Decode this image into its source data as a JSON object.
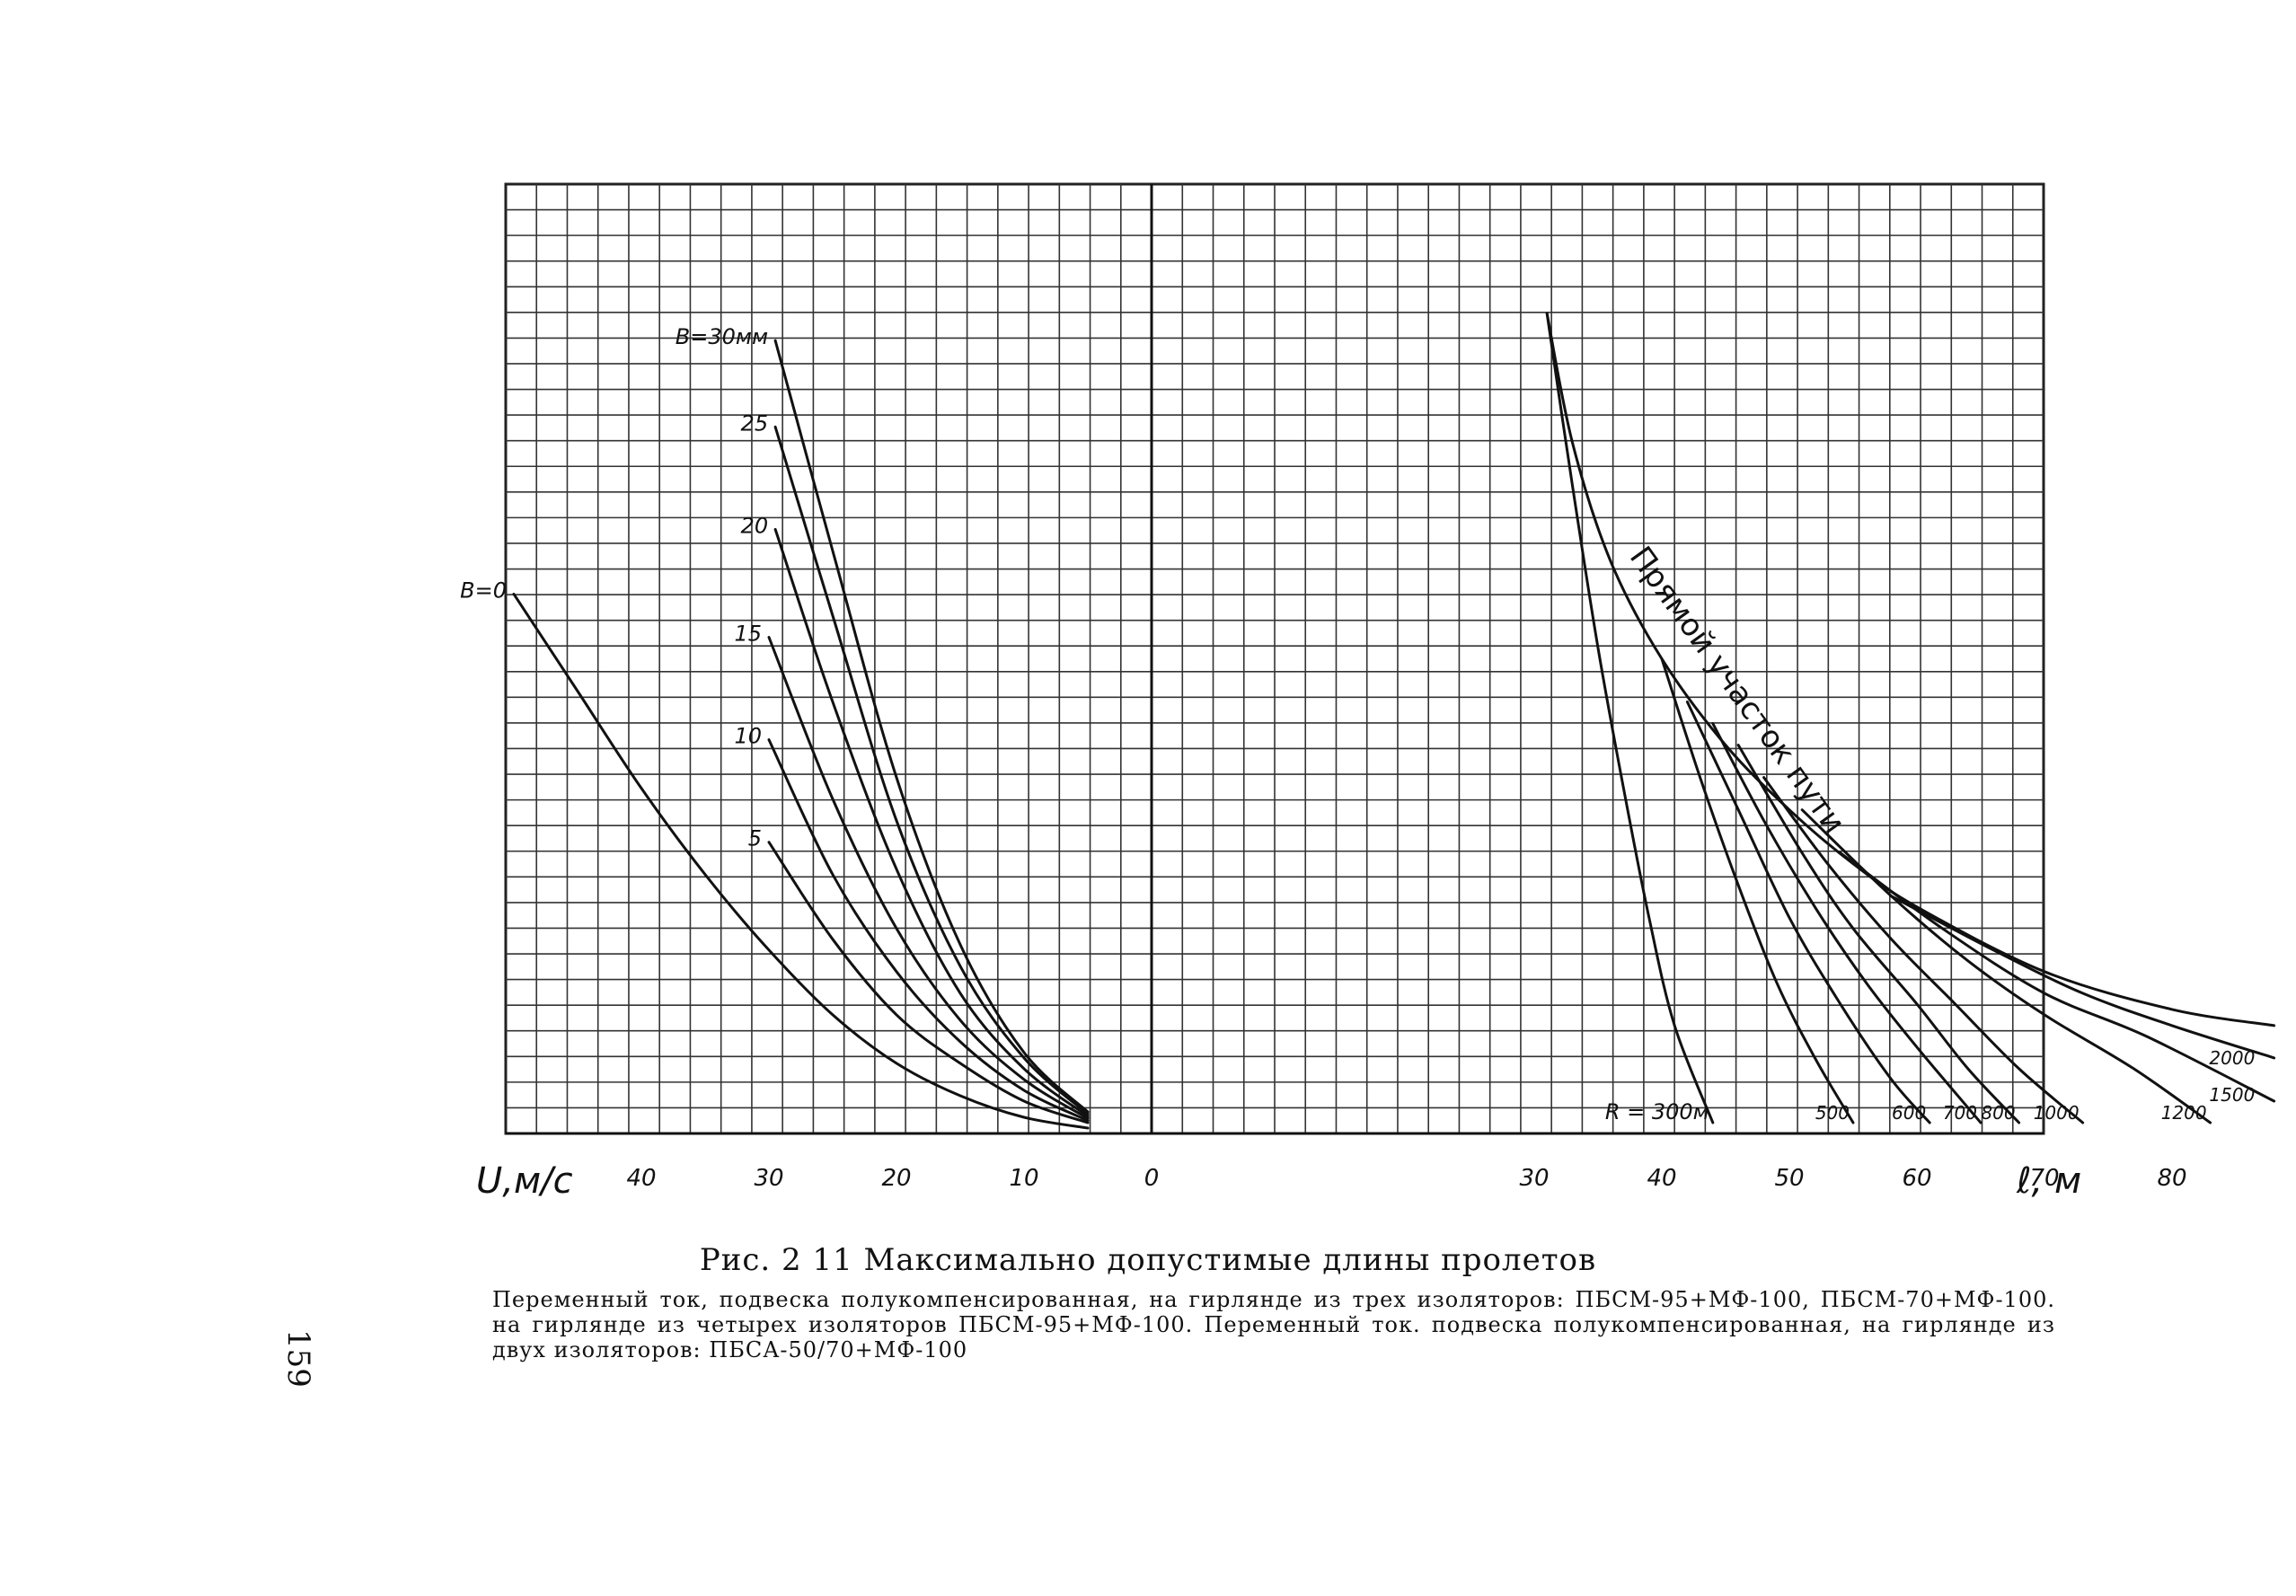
{
  "page_number": "159",
  "figure": {
    "title": "Рис. 2 11 Максимально допустимые длины пролетов",
    "subtitle": "Переменный ток, подвеска полукомпенсированная, на гирлянде из трех изоляторов: ПБСМ-95+МФ-100, ПБСМ-70+МФ-100. на гирлянде из четырех изоляторов ПБСМ-95+МФ-100. Переменный ток. подвеска полукомпенсированная, на гирлянде из двух изоляторов: ПБСА-50/70+МФ-100"
  },
  "chart_data": {
    "type": "line",
    "grid": true,
    "axis": {
      "left_label": "U,м/с",
      "right_label": "ℓ, м",
      "left_ticks": [
        "40",
        "30",
        "20",
        "10"
      ],
      "center_tick": "0",
      "right_ticks": [
        "30",
        "40",
        "50",
        "60",
        "70",
        "80"
      ]
    },
    "left_panel": {
      "x_label": "U, м/с",
      "y_label": "ℓ, м",
      "xlim": [
        0,
        50
      ],
      "ylim": [
        0,
        88
      ],
      "x_reversed": true,
      "series": [
        {
          "name": "B=0",
          "label": "B=0",
          "points": [
            [
              50,
              50
            ],
            [
              45,
              41
            ],
            [
              40,
              32
            ],
            [
              35,
              24
            ],
            [
              30,
              17
            ],
            [
              25,
              11
            ],
            [
              20,
              6.5
            ],
            [
              15,
              3.5
            ],
            [
              10,
              1.5
            ],
            [
              5,
              0.5
            ]
          ]
        },
        {
          "name": "5",
          "label": "5",
          "points": [
            [
              30,
              27
            ],
            [
              25,
              18
            ],
            [
              20,
              11
            ],
            [
              15,
              6.5
            ],
            [
              10,
              3
            ],
            [
              5,
              1
            ]
          ]
        },
        {
          "name": "10",
          "label": "10",
          "points": [
            [
              30,
              36.5
            ],
            [
              25,
              24
            ],
            [
              20,
              15
            ],
            [
              15,
              8.5
            ],
            [
              10,
              4
            ],
            [
              5,
              1.2
            ]
          ]
        },
        {
          "name": "15",
          "label": "15",
          "points": [
            [
              30,
              46
            ],
            [
              25,
              31
            ],
            [
              20,
              19
            ],
            [
              15,
              10.5
            ],
            [
              10,
              5
            ],
            [
              5,
              1.4
            ]
          ]
        },
        {
          "name": "20",
          "label": "20",
          "points": [
            [
              29.5,
              56
            ],
            [
              25,
              40
            ],
            [
              20,
              24.5
            ],
            [
              15,
              13
            ],
            [
              10,
              6
            ],
            [
              5,
              1.6
            ]
          ]
        },
        {
          "name": "25",
          "label": "25",
          "points": [
            [
              29.5,
              65.5
            ],
            [
              25,
              48
            ],
            [
              20,
              29
            ],
            [
              15,
              15.5
            ],
            [
              10,
              7
            ],
            [
              5,
              1.8
            ]
          ]
        },
        {
          "name": "B=30мм",
          "label": "B=30мм",
          "points": [
            [
              29.5,
              73.5
            ],
            [
              25,
              54
            ],
            [
              20,
              33
            ],
            [
              15,
              17.5
            ],
            [
              10,
              7.5
            ],
            [
              5,
              2
            ]
          ]
        }
      ]
    },
    "right_panel": {
      "x_label": "ℓ, м",
      "y_label": "U, м/с",
      "xlim": [
        0,
        88
      ],
      "ylim": [
        0,
        88
      ],
      "series": [
        {
          "name": "Прямой участок пути",
          "label": "Прямой участок пути",
          "points": [
            [
              31,
              76
            ],
            [
              33,
              64
            ],
            [
              36,
              53
            ],
            [
              40,
              44
            ],
            [
              45,
              36
            ],
            [
              50,
              30
            ],
            [
              55,
              25
            ],
            [
              60,
              21
            ],
            [
              70,
              15
            ],
            [
              80,
              11.5
            ],
            [
              88,
              10
            ]
          ]
        },
        {
          "name": "R = 300м",
          "label": "R = 300м",
          "points": [
            [
              31,
              76
            ],
            [
              33,
              60
            ],
            [
              35,
              45
            ],
            [
              37,
              32
            ],
            [
              39,
              20
            ],
            [
              41,
              10
            ],
            [
              44,
              1
            ]
          ]
        },
        {
          "name": "500",
          "label": "500",
          "points": [
            [
              40,
              44
            ],
            [
              43,
              33
            ],
            [
              46,
              23
            ],
            [
              49,
              14
            ],
            [
              52,
              7
            ],
            [
              55,
              1
            ]
          ]
        },
        {
          "name": "600",
          "label": "600",
          "points": [
            [
              42,
              40
            ],
            [
              46,
              30
            ],
            [
              50,
              20
            ],
            [
              54,
              12
            ],
            [
              58,
              5
            ],
            [
              61,
              1
            ]
          ]
        },
        {
          "name": "700",
          "label": "700",
          "points": [
            [
              44,
              38
            ],
            [
              48,
              29
            ],
            [
              52,
              21
            ],
            [
              56,
              14
            ],
            [
              60,
              8
            ],
            [
              65,
              1
            ]
          ]
        },
        {
          "name": "800",
          "label": "800",
          "points": [
            [
              46,
              36
            ],
            [
              51,
              26
            ],
            [
              55,
              19
            ],
            [
              60,
              12
            ],
            [
              64,
              6
            ],
            [
              68,
              1
            ]
          ]
        },
        {
          "name": "1000",
          "label": "1000",
          "points": [
            [
              48,
              33
            ],
            [
              53,
              25
            ],
            [
              58,
              18
            ],
            [
              63,
              12
            ],
            [
              68,
              6
            ],
            [
              73,
              1
            ]
          ]
        },
        {
          "name": "1200",
          "label": "1200",
          "points": [
            [
              51,
              30
            ],
            [
              58,
              22
            ],
            [
              64,
              16
            ],
            [
              70,
              11
            ],
            [
              77,
              6
            ],
            [
              83,
              1
            ]
          ]
        },
        {
          "name": "1500",
          "label": "1500",
          "points": [
            [
              54,
              26
            ],
            [
              62,
              19
            ],
            [
              70,
              13
            ],
            [
              78,
              9
            ],
            [
              88,
              3
            ]
          ]
        },
        {
          "name": "2000",
          "label": "2000",
          "points": [
            [
              58,
              22
            ],
            [
              66,
              17
            ],
            [
              73,
              13
            ],
            [
              80,
              10
            ],
            [
              88,
              7
            ]
          ]
        }
      ]
    }
  }
}
